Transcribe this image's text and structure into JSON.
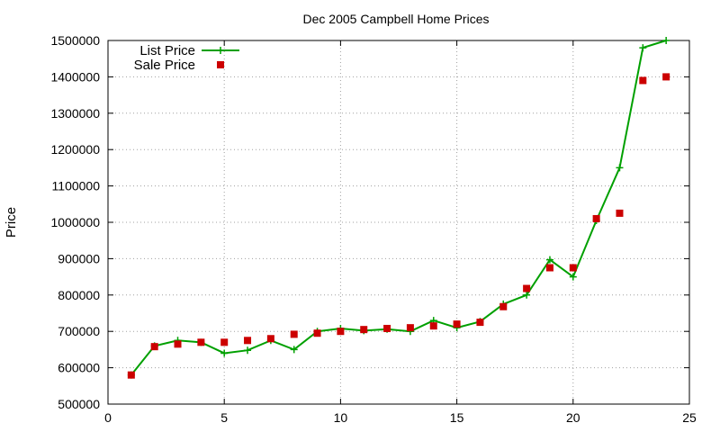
{
  "chart_data": {
    "type": "line",
    "title": "Dec 2005 Campbell Home Prices",
    "xlabel": "",
    "ylabel": "Price",
    "xlim": [
      0,
      25
    ],
    "ylim": [
      500000,
      1500000
    ],
    "x_ticks": [
      0,
      5,
      10,
      15,
      20,
      25
    ],
    "y_ticks": [
      500000,
      600000,
      700000,
      800000,
      900000,
      1000000,
      1100000,
      1200000,
      1300000,
      1400000,
      1500000
    ],
    "grid": true,
    "legend_position": "top-left",
    "x": [
      1,
      2,
      3,
      4,
      5,
      6,
      7,
      8,
      9,
      10,
      11,
      12,
      13,
      14,
      15,
      16,
      17,
      18,
      19,
      20,
      21,
      22,
      23,
      24
    ],
    "series": [
      {
        "name": "List Price",
        "style": "linespoints",
        "marker": "plus",
        "color": "#00a000",
        "values": [
          580000,
          660000,
          675000,
          670000,
          640000,
          648000,
          675000,
          650000,
          700000,
          708000,
          702000,
          706000,
          700000,
          730000,
          710000,
          727000,
          775000,
          800000,
          897000,
          850000,
          1005000,
          1150000,
          1480000,
          1500000
        ]
      },
      {
        "name": "Sale Price",
        "style": "points",
        "marker": "square",
        "color": "#cc0000",
        "values": [
          580000,
          658000,
          665000,
          670000,
          670000,
          675000,
          680000,
          692000,
          695000,
          700000,
          705000,
          708000,
          710000,
          715000,
          720000,
          725000,
          768000,
          818000,
          875000,
          875000,
          1010000,
          1025000,
          1390000,
          1400000
        ]
      }
    ]
  }
}
